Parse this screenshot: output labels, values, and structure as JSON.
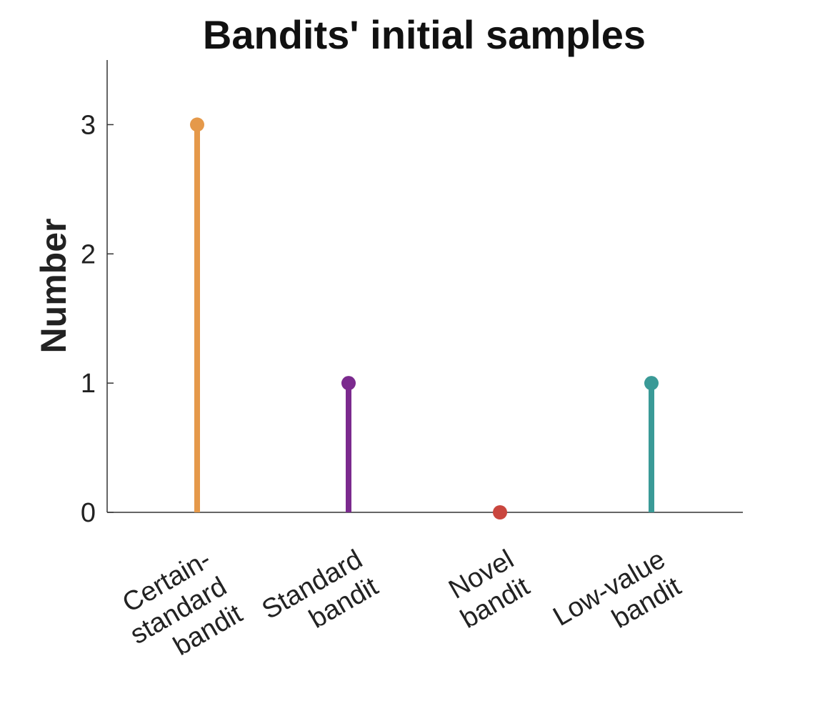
{
  "chart_data": {
    "type": "stem",
    "title": "Bandits' initial samples",
    "xlabel": "",
    "ylabel": "Number",
    "ylim": [
      0,
      3.5
    ],
    "yticks": [
      0,
      1,
      2,
      3
    ],
    "categories": [
      [
        "Certain-",
        "standard",
        "bandit"
      ],
      [
        "Standard",
        "bandit"
      ],
      [
        "Novel",
        "bandit"
      ],
      [
        "Low-value",
        "bandit"
      ]
    ],
    "values": [
      3,
      1,
      0,
      1
    ],
    "colors": [
      "#E5994A",
      "#7B2A8E",
      "#C9463E",
      "#3A9A97"
    ],
    "grid": false,
    "legend": "none"
  }
}
